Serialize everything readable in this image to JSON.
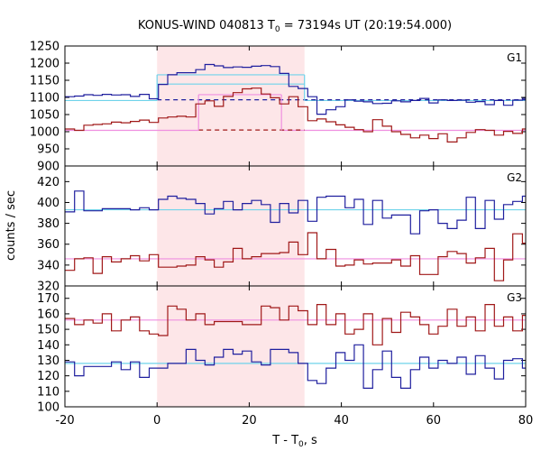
{
  "chart_data": {
    "type": "line",
    "title": {
      "main": "KONUS-WIND 040813 T",
      "sub": "0",
      "rest": " = 73194s UT (20:19:54.000)"
    },
    "xlabel": {
      "main": "T - T",
      "sub": "0",
      "rest": ", s"
    },
    "ylabel": "counts / sec",
    "xlim": [
      -20,
      80
    ],
    "x_ticks": [
      -20,
      0,
      20,
      40,
      60,
      80
    ],
    "shaded_interval": [
      0,
      32
    ],
    "colors": {
      "blue": "#1f1f9e",
      "red": "#a01818",
      "cyan": "#6fd3ea",
      "pink": "#ef8fe0",
      "shade": "#fde6e8"
    },
    "bin_edges_x": [
      -20,
      -17.9,
      -15.9,
      -13.9,
      -11.9,
      -9.9,
      -7.8,
      -5.8,
      -3.8,
      -1.7,
      0.3,
      2.3,
      4.3,
      6.3,
      8.4,
      10.4,
      12.4,
      14.4,
      16.5,
      18.5,
      20.5,
      22.6,
      24.6,
      26.6,
      28.6,
      30.6,
      32.7,
      34.7,
      36.7,
      38.8,
      40.8,
      42.8,
      44.8,
      46.8,
      48.9,
      50.9,
      52.9,
      55.0,
      57.0,
      59.0,
      61.0,
      63.0,
      65.1,
      67.1,
      69.1,
      71.2,
      73.2,
      75.2,
      77.2,
      79.3,
      80
    ],
    "panels": [
      {
        "label": "G1",
        "ylim": [
          900,
          1250
        ],
        "y_ticks": [
          900,
          950,
          1000,
          1050,
          1100,
          1150,
          1200,
          1250
        ],
        "series": [
          {
            "name": "G1 blue",
            "color": "blue",
            "values": [
              1102,
              1104,
              1108,
              1106,
              1109,
              1107,
              1108,
              1103,
              1109,
              1096,
              1138,
              1166,
              1172,
              1172,
              1181,
              1196,
              1192,
              1187,
              1189,
              1188,
              1191,
              1193,
              1190,
              1170,
              1132,
              1126,
              1102,
              1051,
              1064,
              1073,
              1093,
              1089,
              1087,
              1082,
              1083,
              1090,
              1087,
              1091,
              1097,
              1084,
              1093,
              1091,
              1092,
              1086,
              1088,
              1079,
              1091,
              1077,
              1092,
              1097
            ]
          },
          {
            "name": "G1 red",
            "color": "red",
            "values": [
              1008,
              1004,
              1019,
              1021,
              1023,
              1028,
              1026,
              1030,
              1034,
              1027,
              1040,
              1043,
              1045,
              1043,
              1081,
              1090,
              1074,
              1103,
              1114,
              1125,
              1127,
              1110,
              1099,
              1081,
              1102,
              1073,
              1032,
              1037,
              1029,
              1020,
              1013,
              1006,
              1000,
              1035,
              1016,
              1000,
              992,
              982,
              990,
              980,
              994,
              970,
              982,
              998,
              1006,
              1004,
              990,
              1001,
              995,
              1008
            ]
          }
        ],
        "fits": [
          {
            "color": "cyan",
            "segments": [
              {
                "x": [
                  -20,
                  0
                ],
                "y": 1091,
                "style": "solid"
              },
              {
                "x": [
                  0,
                  32
                ],
                "y": 1166,
                "style": "solid"
              },
              {
                "x": [
                  0,
                  32
                ],
                "y": 1139,
                "style": "solid"
              },
              {
                "x": [
                  32,
                  80
                ],
                "y": 1091,
                "style": "solid"
              }
            ]
          },
          {
            "color": "blue",
            "segments": [
              {
                "x": [
                  0,
                  80
                ],
                "y": 1093,
                "style": "dashed"
              }
            ]
          },
          {
            "color": "pink",
            "segments": [
              {
                "x": [
                  -20,
                  9
                ],
                "y": 1004,
                "style": "solid"
              },
              {
                "x": [
                  9,
                  27
                ],
                "y": 1108,
                "style": "solid"
              },
              {
                "x": [
                  27,
                  80
                ],
                "y": 1004,
                "style": "solid"
              }
            ]
          },
          {
            "color": "red",
            "segments": [
              {
                "x": [
                  9,
                  32
                ],
                "y": 1005,
                "style": "dashed"
              }
            ]
          }
        ]
      },
      {
        "label": "G2",
        "ylim": [
          320,
          435
        ],
        "y_ticks": [
          320,
          340,
          360,
          380,
          400,
          420
        ],
        "series": [
          {
            "name": "G2 blue",
            "color": "blue",
            "values": [
              391,
              411,
              392,
              392,
              394,
              394,
              394,
              393,
              395,
              393,
              403,
              406,
              404,
              403,
              399,
              389,
              394,
              401,
              393,
              399,
              402,
              398,
              381,
              399,
              390,
              402,
              382,
              405,
              406,
              406,
              395,
              403,
              379,
              402,
              385,
              388,
              388,
              370,
              392,
              393,
              380,
              375,
              383,
              405,
              375,
              402,
              384,
              398,
              401,
              406
            ]
          },
          {
            "name": "G2 red",
            "color": "red",
            "values": [
              335,
              346,
              347,
              332,
              348,
              343,
              346,
              349,
              344,
              350,
              338,
              338,
              339,
              340,
              348,
              345,
              338,
              343,
              356,
              346,
              348,
              351,
              351,
              352,
              362,
              350,
              371,
              346,
              355,
              339,
              340,
              345,
              341,
              342,
              342,
              345,
              339,
              349,
              331,
              331,
              348,
              353,
              351,
              342,
              347,
              356,
              325,
              345,
              370,
              361
            ]
          }
        ],
        "fits": [
          {
            "color": "cyan",
            "segments": [
              {
                "x": [
                  -20,
                  80
                ],
                "y": 393,
                "style": "solid"
              }
            ]
          },
          {
            "color": "pink",
            "segments": [
              {
                "x": [
                  -20,
                  80
                ],
                "y": 346,
                "style": "solid"
              }
            ]
          }
        ]
      },
      {
        "label": "G3",
        "ylim": [
          100,
          178
        ],
        "y_ticks": [
          100,
          110,
          120,
          130,
          140,
          150,
          160,
          170
        ],
        "series": [
          {
            "name": "G3 blue",
            "color": "blue",
            "values": [
              129,
              120,
              126,
              126,
              126,
              129,
              124,
              129,
              119,
              125,
              125,
              128,
              128,
              137,
              130,
              127,
              132,
              137,
              134,
              136,
              129,
              127,
              137,
              137,
              135,
              128,
              117,
              115,
              125,
              135,
              130,
              140,
              112,
              124,
              136,
              119,
              112,
              124,
              132,
              125,
              130,
              128,
              132,
              121,
              133,
              125,
              118,
              130,
              131,
              125
            ]
          },
          {
            "name": "G3 red",
            "color": "red",
            "values": [
              157,
              153,
              156,
              154,
              160,
              149,
              156,
              158,
              149,
              147,
              146,
              165,
              163,
              156,
              160,
              153,
              155,
              155,
              155,
              153,
              153,
              165,
              164,
              156,
              165,
              162,
              153,
              166,
              153,
              160,
              147,
              150,
              160,
              140,
              157,
              148,
              161,
              158,
              153,
              147,
              152,
              163,
              152,
              158,
              149,
              166,
              152,
              158,
              149,
              159
            ]
          }
        ],
        "fits": [
          {
            "color": "cyan",
            "segments": [
              {
                "x": [
                  -20,
                  80
                ],
                "y": 128,
                "style": "solid"
              }
            ]
          },
          {
            "color": "pink",
            "segments": [
              {
                "x": [
                  -20,
                  80
                ],
                "y": 156,
                "style": "solid"
              }
            ]
          }
        ]
      }
    ]
  }
}
